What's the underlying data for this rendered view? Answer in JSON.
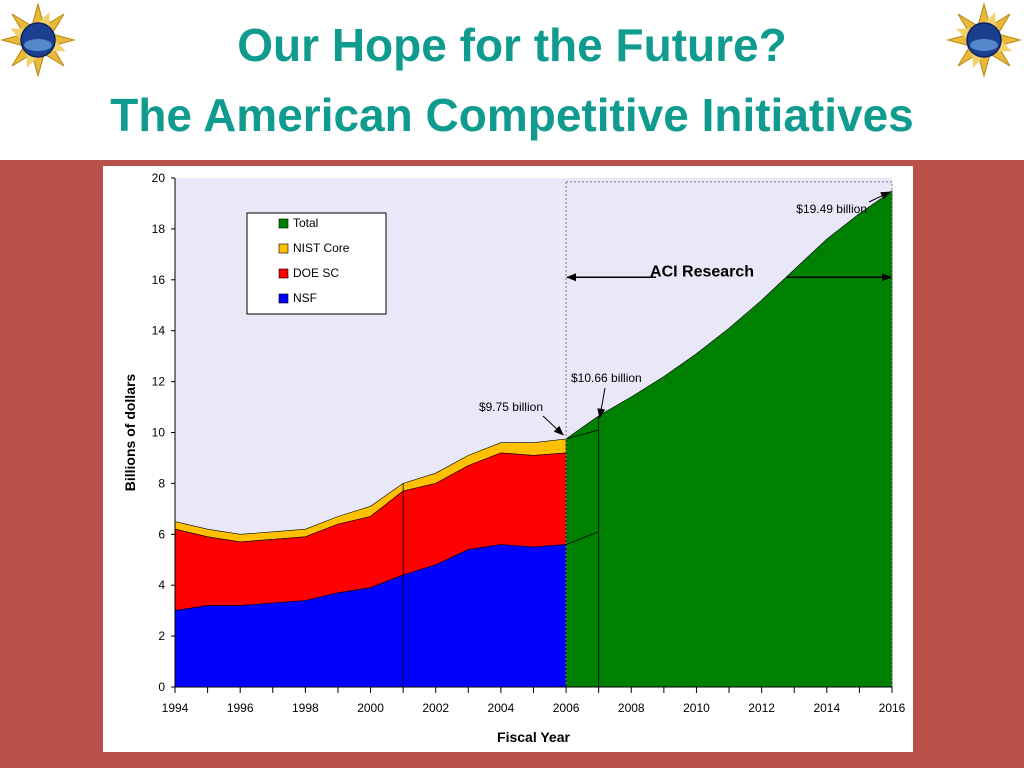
{
  "slide": {
    "title_line1": "Our Hope for the Future?",
    "title_line2": "The American Competitive Initiatives",
    "title_color": "#0f9b8e",
    "background_color": "#b95049",
    "logo": {
      "icon": "nsf-logo-icon",
      "text": "NSF"
    }
  },
  "chart_data": {
    "type": "area",
    "stacked": true,
    "xlabel": "Fiscal Year",
    "ylabel": "Billions of dollars",
    "xlim": [
      1994,
      2016
    ],
    "ylim": [
      0,
      20
    ],
    "x_ticks": [
      "1994",
      "1996",
      "1998",
      "2000",
      "2002",
      "2004",
      "2006",
      "2008",
      "2010",
      "2012",
      "2014",
      "2016"
    ],
    "y_ticks": [
      "0",
      "2",
      "4",
      "6",
      "8",
      "10",
      "12",
      "14",
      "16",
      "18",
      "20"
    ],
    "plot_background": "#e8e8f8",
    "legend": {
      "position": "top-left",
      "entries": [
        {
          "name": "Total",
          "color": "#008000"
        },
        {
          "name": "NIST Core",
          "color": "#ffc000"
        },
        {
          "name": "DOE SC",
          "color": "#ff0000"
        },
        {
          "name": "NSF",
          "color": "#0000ff"
        }
      ]
    },
    "series": [
      {
        "name": "NSF",
        "color": "#0000ff",
        "x": [
          1994,
          1995,
          1996,
          1997,
          1998,
          1999,
          2000,
          2001,
          2002,
          2003,
          2004,
          2005,
          2006
        ],
        "values": [
          3.0,
          3.2,
          3.2,
          3.3,
          3.4,
          3.7,
          3.9,
          4.4,
          4.8,
          5.4,
          5.6,
          5.5,
          5.6
        ]
      },
      {
        "name": "DOE SC",
        "color": "#ff0000",
        "x": [
          1994,
          1995,
          1996,
          1997,
          1998,
          1999,
          2000,
          2001,
          2002,
          2003,
          2004,
          2005,
          2006
        ],
        "values": [
          3.2,
          2.7,
          2.5,
          2.5,
          2.5,
          2.7,
          2.8,
          3.3,
          3.2,
          3.3,
          3.6,
          3.6,
          3.6
        ]
      },
      {
        "name": "NIST Core",
        "color": "#ffc000",
        "x": [
          1994,
          1995,
          1996,
          1997,
          1998,
          1999,
          2000,
          2001,
          2002,
          2003,
          2004,
          2005,
          2006
        ],
        "values": [
          0.3,
          0.3,
          0.3,
          0.3,
          0.3,
          0.3,
          0.4,
          0.3,
          0.4,
          0.4,
          0.4,
          0.5,
          0.55
        ]
      },
      {
        "name": "Total",
        "color": "#008000",
        "x": [
          2006,
          2007,
          2008,
          2009,
          2010,
          2011,
          2012,
          2013,
          2014,
          2015,
          2016
        ],
        "values": [
          9.75,
          10.66,
          11.4,
          12.2,
          13.1,
          14.1,
          15.2,
          16.4,
          17.6,
          18.6,
          19.49
        ]
      }
    ],
    "annotations": [
      {
        "text": "$9.75 billion",
        "x": 2006,
        "y": 9.75
      },
      {
        "text": "$10.66 billion",
        "x": 2007,
        "y": 10.66
      },
      {
        "text": "$19.49 billion",
        "x": 2016,
        "y": 19.49
      },
      {
        "text": "ACI Research",
        "x_range": [
          2006,
          2016
        ],
        "y": 16.1
      }
    ],
    "grid": false
  }
}
